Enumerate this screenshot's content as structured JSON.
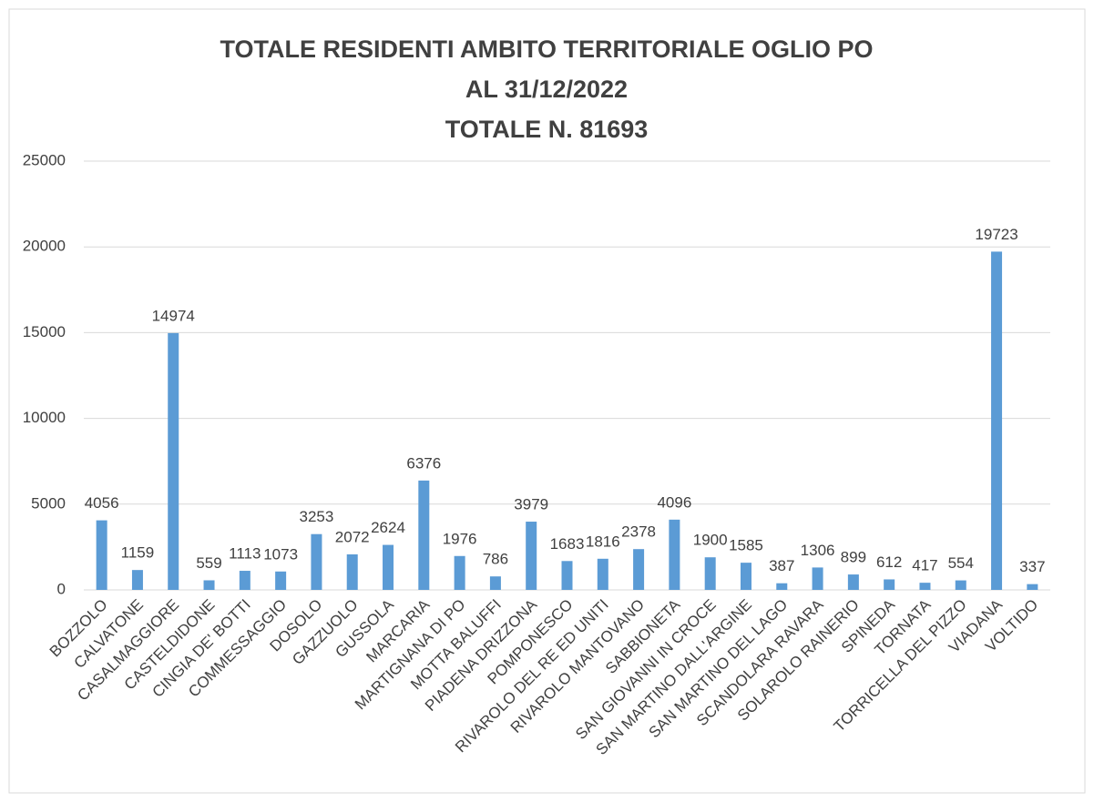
{
  "chart_data": {
    "type": "bar",
    "title": [
      "TOTALE RESIDENTI AMBITO TERRITORIALE OGLIO PO",
      "AL 31/12/2022",
      "TOTALE N. 81693"
    ],
    "categories": [
      "BOZZOLO",
      "CALVATONE",
      "CASALMAGGIORE",
      "CASTELDIDONE",
      "CINGIA DE' BOTTI",
      "COMMESSAGGIO",
      "DOSOLO",
      "GAZZUOLO",
      "GUSSOLA",
      "MARCARIA",
      "MARTIGNANA DI PO",
      "MOTTA BALUFFI",
      "PIADENA DRIZZONA",
      "POMPONESCO",
      "RIVAROLO DEL RE ED UNITI",
      "RIVAROLO MANTOVANO",
      "SABBIONETA",
      "SAN GIOVANNI IN CROCE",
      "SAN MARTINO DALL'ARGINE",
      "SAN MARTINO DEL LAGO",
      "SCANDOLARA RAVARA",
      "SOLAROLO RAINERIO",
      "SPINEDA",
      "TORNATA",
      "TORRICELLA DEL PIZZO",
      "VIADANA",
      "VOLTIDO"
    ],
    "values": [
      4056,
      1159,
      14974,
      559,
      1113,
      1073,
      3253,
      2072,
      2624,
      6376,
      1976,
      786,
      3979,
      1683,
      1816,
      2378,
      4096,
      1900,
      1585,
      387,
      1306,
      899,
      612,
      417,
      554,
      19723,
      337
    ],
    "color": "#5b9bd5",
    "ylim": [
      0,
      25000
    ],
    "yticks": [
      0,
      5000,
      10000,
      15000,
      20000,
      25000
    ],
    "grid": true
  }
}
